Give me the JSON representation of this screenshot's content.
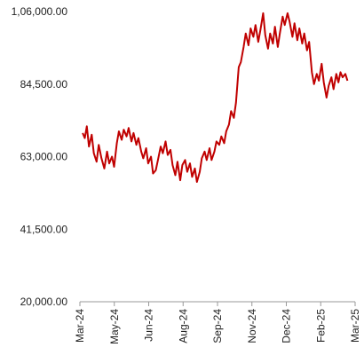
{
  "chart_data": {
    "type": "line",
    "title": "",
    "xlabel": "",
    "ylabel": "",
    "grid": false,
    "ylim": [
      20000,
      106000
    ],
    "y_ticks": [
      {
        "value": 20000,
        "label": "20,000.00"
      },
      {
        "value": 41500,
        "label": "41,500.00"
      },
      {
        "value": 63000,
        "label": "63,000.00"
      },
      {
        "value": 84500,
        "label": "84,500.00"
      },
      {
        "value": 106000,
        "label": "1,06,000.00"
      }
    ],
    "x_ticks": [
      "Mar-24",
      "May-24",
      "Jun-24",
      "Aug-24",
      "Sep-24",
      "Nov-24",
      "Dec-24",
      "Feb-25",
      "Mar-25"
    ],
    "x_range": [
      "2024-03-01",
      "2025-03-31"
    ],
    "series": [
      {
        "color": "#c00000",
        "points": [
          [
            "2024-03-05",
            70000
          ],
          [
            "2024-03-08",
            68500
          ],
          [
            "2024-03-11",
            72000
          ],
          [
            "2024-03-14",
            66000
          ],
          [
            "2024-03-18",
            69500
          ],
          [
            "2024-03-21",
            64000
          ],
          [
            "2024-03-25",
            61500
          ],
          [
            "2024-03-28",
            66500
          ],
          [
            "2024-04-01",
            62500
          ],
          [
            "2024-04-05",
            59500
          ],
          [
            "2024-04-09",
            64500
          ],
          [
            "2024-04-12",
            61000
          ],
          [
            "2024-04-16",
            63000
          ],
          [
            "2024-04-19",
            60000
          ],
          [
            "2024-04-23",
            67000
          ],
          [
            "2024-04-26",
            70500
          ],
          [
            "2024-04-30",
            68000
          ],
          [
            "2024-05-03",
            71000
          ],
          [
            "2024-05-07",
            69000
          ],
          [
            "2024-05-10",
            71500
          ],
          [
            "2024-05-14",
            67500
          ],
          [
            "2024-05-17",
            70000
          ],
          [
            "2024-05-21",
            66500
          ],
          [
            "2024-05-24",
            68500
          ],
          [
            "2024-05-28",
            64500
          ],
          [
            "2024-05-31",
            62500
          ],
          [
            "2024-06-04",
            65500
          ],
          [
            "2024-06-07",
            61000
          ],
          [
            "2024-06-11",
            63000
          ],
          [
            "2024-06-14",
            58000
          ],
          [
            "2024-06-18",
            59000
          ],
          [
            "2024-06-21",
            62000
          ],
          [
            "2024-06-25",
            66000
          ],
          [
            "2024-06-28",
            64000
          ],
          [
            "2024-07-02",
            67500
          ],
          [
            "2024-07-05",
            63500
          ],
          [
            "2024-07-09",
            65000
          ],
          [
            "2024-07-12",
            60500
          ],
          [
            "2024-07-16",
            57500
          ],
          [
            "2024-07-19",
            61500
          ],
          [
            "2024-07-23",
            56000
          ],
          [
            "2024-07-26",
            60500
          ],
          [
            "2024-07-30",
            62000
          ],
          [
            "2024-08-02",
            58500
          ],
          [
            "2024-08-06",
            61000
          ],
          [
            "2024-08-09",
            57000
          ],
          [
            "2024-08-13",
            59500
          ],
          [
            "2024-08-16",
            55500
          ],
          [
            "2024-08-20",
            58500
          ],
          [
            "2024-08-23",
            62500
          ],
          [
            "2024-08-27",
            64500
          ],
          [
            "2024-08-30",
            62000
          ],
          [
            "2024-09-03",
            65500
          ],
          [
            "2024-09-06",
            62000
          ],
          [
            "2024-09-10",
            64500
          ],
          [
            "2024-09-13",
            67500
          ],
          [
            "2024-09-17",
            66500
          ],
          [
            "2024-09-20",
            69000
          ],
          [
            "2024-09-24",
            67000
          ],
          [
            "2024-09-27",
            70500
          ],
          [
            "2024-10-01",
            72500
          ],
          [
            "2024-10-04",
            76500
          ],
          [
            "2024-10-08",
            74500
          ],
          [
            "2024-10-11",
            79000
          ],
          [
            "2024-10-15",
            89500
          ],
          [
            "2024-10-18",
            91000
          ],
          [
            "2024-10-22",
            95500
          ],
          [
            "2024-10-25",
            99500
          ],
          [
            "2024-10-29",
            96000
          ],
          [
            "2024-11-01",
            101000
          ],
          [
            "2024-11-05",
            98500
          ],
          [
            "2024-11-08",
            102000
          ],
          [
            "2024-11-12",
            97000
          ],
          [
            "2024-11-15",
            100500
          ],
          [
            "2024-11-19",
            105500
          ],
          [
            "2024-11-22",
            99000
          ],
          [
            "2024-11-26",
            95000
          ],
          [
            "2024-11-29",
            99500
          ],
          [
            "2024-12-03",
            96500
          ],
          [
            "2024-12-06",
            101500
          ],
          [
            "2024-12-10",
            95500
          ],
          [
            "2024-12-13",
            99500
          ],
          [
            "2024-12-17",
            104500
          ],
          [
            "2024-12-20",
            102000
          ],
          [
            "2024-12-24",
            105500
          ],
          [
            "2024-12-27",
            103000
          ],
          [
            "2024-12-31",
            98500
          ],
          [
            "2025-01-03",
            102500
          ],
          [
            "2025-01-07",
            97500
          ],
          [
            "2025-01-10",
            101000
          ],
          [
            "2025-01-14",
            96500
          ],
          [
            "2025-01-17",
            99500
          ],
          [
            "2025-01-21",
            94500
          ],
          [
            "2025-01-24",
            97000
          ],
          [
            "2025-01-28",
            88000
          ],
          [
            "2025-01-31",
            84500
          ],
          [
            "2025-02-04",
            87500
          ],
          [
            "2025-02-07",
            85500
          ],
          [
            "2025-02-11",
            90500
          ],
          [
            "2025-02-14",
            85000
          ],
          [
            "2025-02-18",
            80500
          ],
          [
            "2025-02-21",
            84000
          ],
          [
            "2025-02-25",
            86500
          ],
          [
            "2025-02-28",
            83000
          ],
          [
            "2025-03-04",
            87500
          ],
          [
            "2025-03-07",
            85000
          ],
          [
            "2025-03-10",
            88000
          ],
          [
            "2025-03-13",
            86500
          ],
          [
            "2025-03-17",
            87500
          ],
          [
            "2025-03-20",
            85500
          ]
        ]
      }
    ]
  }
}
